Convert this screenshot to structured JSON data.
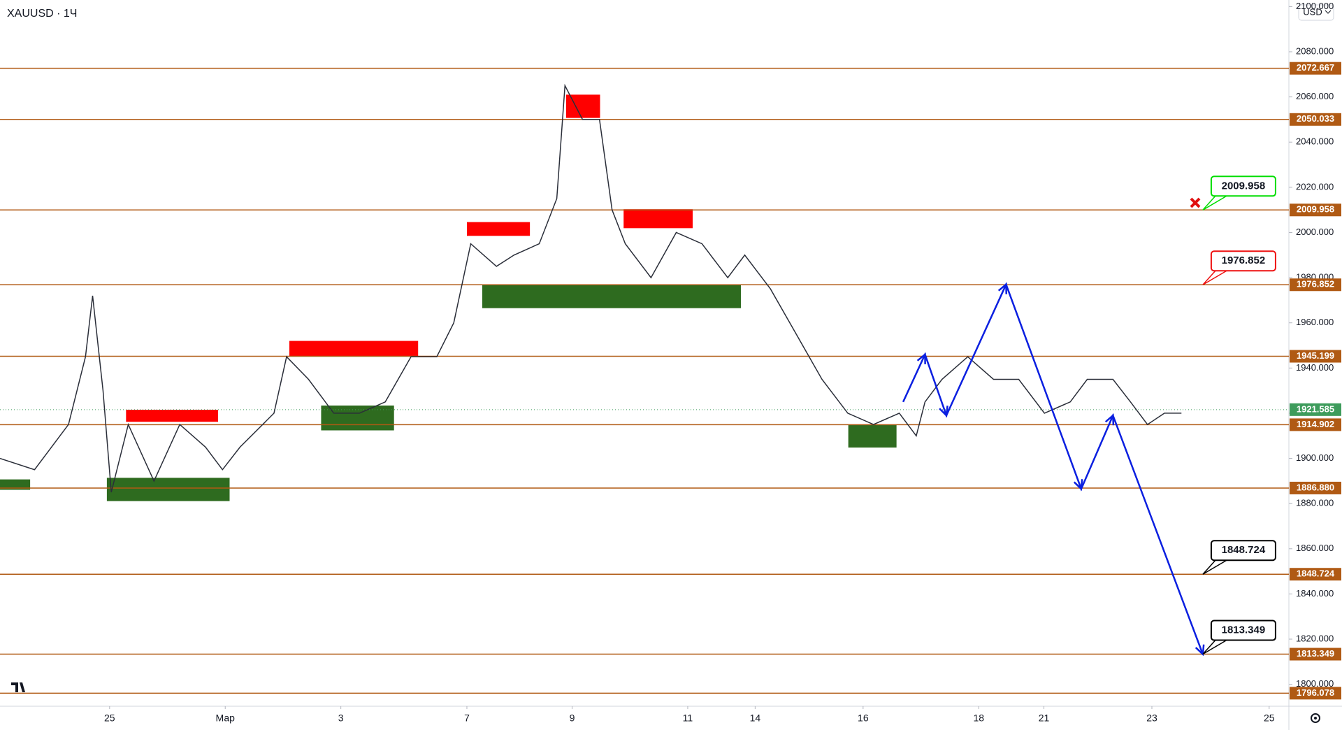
{
  "chart_data": {
    "type": "line",
    "title": "XAUUSD · 1Ч",
    "currency": "USD",
    "xlim": [
      0,
      23.52
    ],
    "ylim": [
      1790.3,
      2102.9
    ],
    "xticks": [
      {
        "value": 2.0,
        "label": "25"
      },
      {
        "value": 4.11,
        "label": "Мар"
      },
      {
        "value": 6.22,
        "label": "3"
      },
      {
        "value": 8.52,
        "label": "7"
      },
      {
        "value": 10.44,
        "label": "9"
      },
      {
        "value": 12.55,
        "label": "11"
      },
      {
        "value": 13.78,
        "label": "14"
      },
      {
        "value": 15.75,
        "label": "16"
      },
      {
        "value": 17.86,
        "label": "18"
      },
      {
        "value": 19.05,
        "label": "21"
      },
      {
        "value": 21.02,
        "label": "23"
      },
      {
        "value": 23.16,
        "label": "25"
      }
    ],
    "yticks": [
      {
        "value": 1800,
        "label": "1800.000"
      },
      {
        "value": 1820,
        "label": "1820.000"
      },
      {
        "value": 1840,
        "label": "1840.000"
      },
      {
        "value": 1860,
        "label": "1860.000"
      },
      {
        "value": 1880,
        "label": "1880.000"
      },
      {
        "value": 1900,
        "label": "1900.000"
      },
      {
        "value": 1920,
        "label": "1920.000"
      },
      {
        "value": 1940,
        "label": "1940.000"
      },
      {
        "value": 1960,
        "label": "1960.000"
      },
      {
        "value": 1980,
        "label": "1980.000"
      },
      {
        "value": 2000,
        "label": "2000.000"
      },
      {
        "value": 2020,
        "label": "2020.000"
      },
      {
        "value": 2040,
        "label": "2040.000"
      },
      {
        "value": 2060,
        "label": "2060.000"
      },
      {
        "value": 2080,
        "label": "2080.000"
      },
      {
        "value": 2100,
        "label": "2100.000"
      }
    ],
    "series": [
      {
        "color": "#2a2e39",
        "x": [
          0,
          0.63,
          0.94,
          1.25,
          1.56,
          1.69,
          1.88,
          2.03,
          2.34,
          2.81,
          3.28,
          3.75,
          4.06,
          4.38,
          5.0,
          5.23,
          5.63,
          6.09,
          6.56,
          7.03,
          7.5,
          7.97,
          8.28,
          8.59,
          9.06,
          9.38,
          9.84,
          10.16,
          10.31,
          10.63,
          10.94,
          11.17,
          11.41,
          11.88,
          12.34,
          12.81,
          13.28,
          13.59,
          14.06,
          14.53,
          15.0,
          15.47,
          15.94,
          16.41,
          16.72,
          16.88,
          17.19,
          17.66,
          18.13,
          18.59,
          19.06,
          19.53,
          19.84,
          20.31,
          20.63,
          20.94,
          21.25,
          21.56
        ],
        "values": [
          1900,
          1895,
          1905,
          1915,
          1945,
          1972,
          1930,
          1885,
          1915,
          1890,
          1915,
          1905,
          1895,
          1905,
          1920,
          1945,
          1935,
          1920,
          1920,
          1925,
          1945,
          1945,
          1960,
          1995,
          1985,
          1990,
          1995,
          2015,
          2065,
          2050,
          2050,
          2010,
          1995,
          1980,
          2000,
          1995,
          1980,
          1990,
          1975,
          1955,
          1935,
          1920,
          1915,
          1920,
          1910,
          1925,
          1935,
          1945,
          1935,
          1935,
          1920,
          1925,
          1935,
          1935,
          1925,
          1915,
          1920,
          1920
        ]
      }
    ],
    "levels": [
      {
        "value": 2072.667,
        "label": "2072.667"
      },
      {
        "value": 2050.033,
        "label": "2050.033"
      },
      {
        "value": 2009.958,
        "label": "2009.958"
      },
      {
        "value": 1976.852,
        "label": "1976.852"
      },
      {
        "value": 1945.199,
        "label": "1945.199"
      },
      {
        "value": 1914.902,
        "label": "1914.902"
      },
      {
        "value": 1886.88,
        "label": "1886.880"
      },
      {
        "value": 1848.724,
        "label": "1848.724"
      },
      {
        "value": 1813.349,
        "label": "1813.349"
      },
      {
        "value": 1796.078,
        "label": "1796.078"
      }
    ],
    "level_color": "#b05a14",
    "last_price": {
      "value": 1921.585,
      "label": "1921.585",
      "color": "#3e9c5c"
    },
    "zones": [
      {
        "color": "#ff0000",
        "x": [
          2.3,
          3.98
        ],
        "y": [
          1916.2,
          1921.5
        ]
      },
      {
        "color": "#2e6b1f",
        "x": [
          1.95,
          4.19
        ],
        "y": [
          1881.1,
          1891.4
        ]
      },
      {
        "color": "#2e6b1f",
        "x": [
          0,
          0.55
        ],
        "y": [
          1886.1,
          1890.7
        ]
      },
      {
        "color": "#ff0000",
        "x": [
          5.28,
          7.63
        ],
        "y": [
          1945.1,
          1952
        ]
      },
      {
        "color": "#2e6b1f",
        "x": [
          5.86,
          7.19
        ],
        "y": [
          1912.4,
          1923.4
        ]
      },
      {
        "color": "#ff0000",
        "x": [
          8.52,
          9.67
        ],
        "y": [
          1998.5,
          2004.6
        ]
      },
      {
        "color": "#2e6b1f",
        "x": [
          8.8,
          13.52
        ],
        "y": [
          1966.5,
          1976.8
        ]
      },
      {
        "color": "#ff0000",
        "x": [
          10.33,
          10.95
        ],
        "y": [
          2050.7,
          2061
        ]
      },
      {
        "color": "#ff0000",
        "x": [
          11.38,
          12.64
        ],
        "y": [
          2001.9,
          2010.3
        ]
      },
      {
        "color": "#2e6b1f",
        "x": [
          15.48,
          16.36
        ],
        "y": [
          1904.8,
          1915
        ]
      }
    ],
    "projection": {
      "color": "#0a1fe0",
      "x": [
        16.48,
        16.88,
        17.27,
        18.36,
        19.73,
        20.31,
        21.95
      ],
      "y": [
        1925,
        1946,
        1919,
        1977,
        1886.5,
        1919,
        1813.3
      ]
    },
    "callouts": [
      {
        "value": 2009.958,
        "label": "2009.958",
        "color": "#00dd00"
      },
      {
        "value": 1976.852,
        "label": "1976.852",
        "color": "#ee1111"
      },
      {
        "value": 1848.724,
        "label": "1848.724",
        "color": "#000000"
      },
      {
        "value": 1813.349,
        "label": "1813.349",
        "color": "#000000"
      }
    ],
    "callout_x": 21.95
  }
}
